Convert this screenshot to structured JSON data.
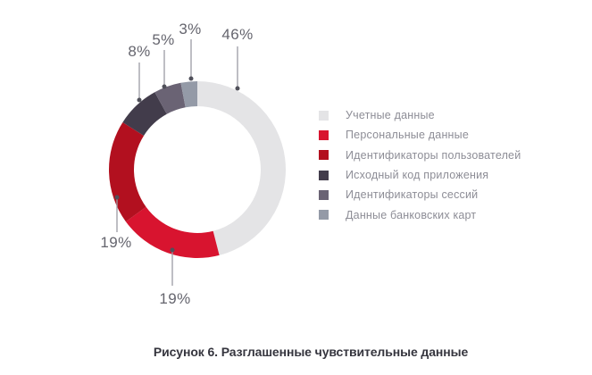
{
  "figure": {
    "caption": "Рисунок 6. Разглашенные чувствительные данные"
  },
  "chart_data": {
    "type": "pie",
    "subtype": "donut",
    "unit": "%",
    "legend_position": "right",
    "title": "Разглашенные чувствительные данные",
    "segments": [
      {
        "label": "Учетные данные",
        "value": 46,
        "callout": "46%",
        "color": "#e4e4e6"
      },
      {
        "label": "Персональные данные",
        "value": 19,
        "callout": "19%",
        "color": "#d8142f"
      },
      {
        "label": "Идентификаторы пользователей",
        "value": 19,
        "callout": "19%",
        "color": "#b2101f"
      },
      {
        "label": "Исходный код приложения",
        "value": 8,
        "callout": "8%",
        "color": "#423c4b"
      },
      {
        "label": "Идентификаторы сессий",
        "value": 5,
        "callout": "5%",
        "color": "#6a6374"
      },
      {
        "label": "Данные банковских карт",
        "value": 3,
        "callout": "3%",
        "color": "#949aa7"
      }
    ]
  }
}
